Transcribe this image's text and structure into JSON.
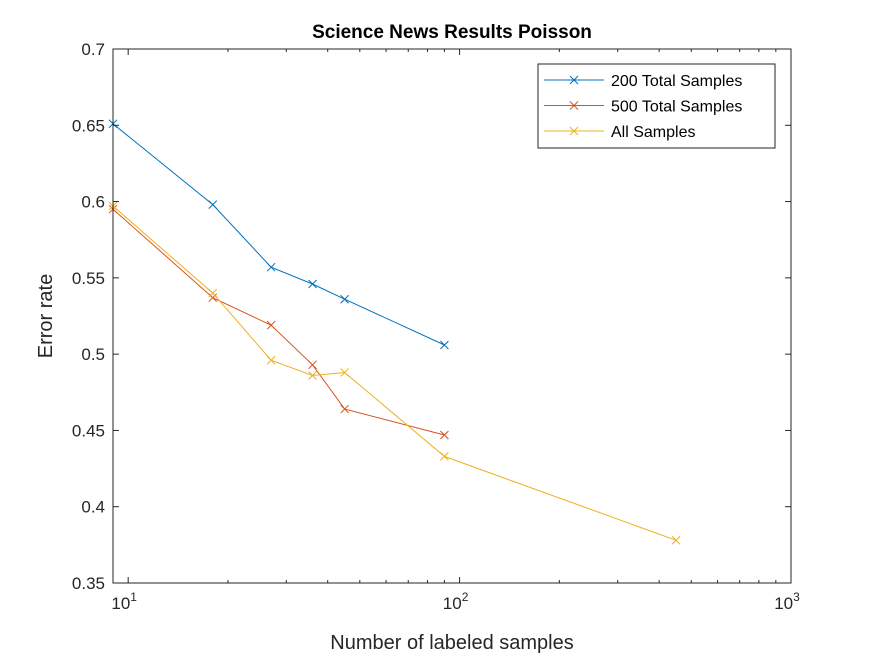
{
  "chart_data": {
    "type": "line",
    "title": "Science News Results Poisson",
    "xlabel": "Number of labeled samples",
    "ylabel": "Error rate",
    "xscale": "log",
    "xlim": [
      9,
      1000
    ],
    "ylim": [
      0.35,
      0.7
    ],
    "yticks": [
      "0.35",
      "0.4",
      "0.45",
      "0.5",
      "0.55",
      "0.6",
      "0.65",
      "0.7"
    ],
    "xticks": [
      {
        "value": 10,
        "base": "10",
        "exp": "1"
      },
      {
        "value": 100,
        "base": "10",
        "exp": "2"
      },
      {
        "value": 1000,
        "base": "10",
        "exp": "3"
      }
    ],
    "grid": false,
    "legend_position": "top-right",
    "marker": "x",
    "series": [
      {
        "name": "200 Total Samples",
        "color": "#0072BD",
        "x": [
          9,
          18,
          27,
          36,
          45,
          90
        ],
        "y": [
          0.651,
          0.598,
          0.557,
          0.546,
          0.536,
          0.506
        ]
      },
      {
        "name": "500 Total Samples",
        "color": "#D95319",
        "x": [
          9,
          18,
          27,
          36,
          45,
          90
        ],
        "y": [
          0.595,
          0.537,
          0.519,
          0.493,
          0.464,
          0.447
        ]
      },
      {
        "name": "All Samples",
        "color": "#EDB120",
        "x": [
          9,
          18,
          27,
          36,
          45,
          90,
          450
        ],
        "y": [
          0.597,
          0.54,
          0.496,
          0.486,
          0.488,
          0.433,
          0.378
        ]
      }
    ]
  }
}
